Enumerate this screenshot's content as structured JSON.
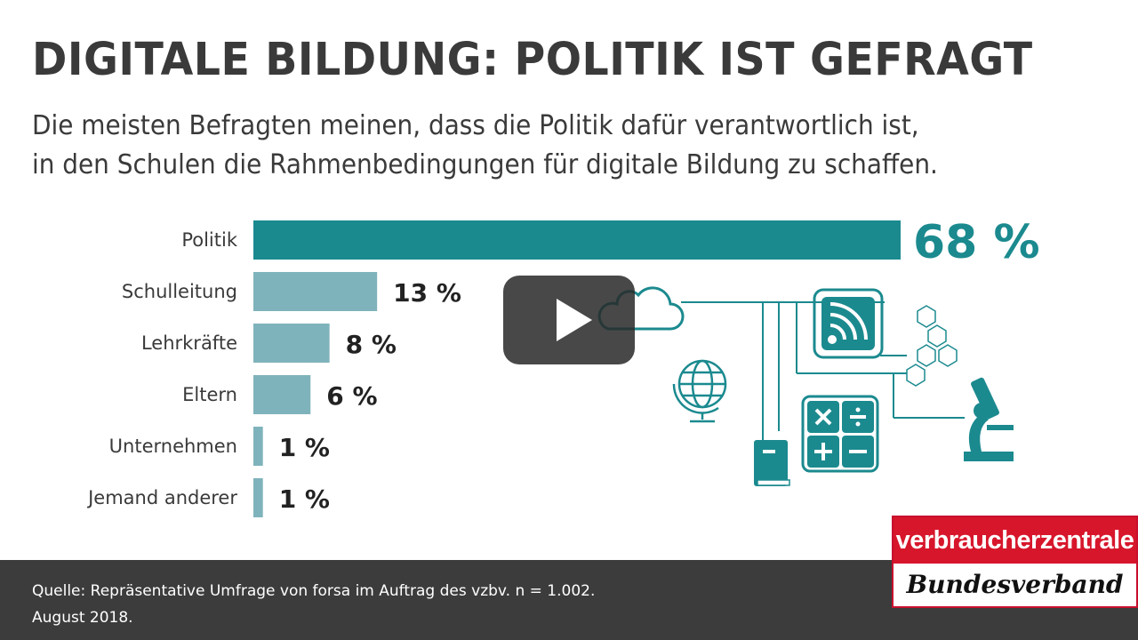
{
  "title": "DIGITALE BILDUNG: POLITIK IST GEFRAGT",
  "subtitle_line1": "Die meisten Befragten meinen, dass die Politik dafür verantwortlich ist,",
  "subtitle_line2": "in den Schulen die Rahmenbedingungen für digitale Bildung zu schaffen.",
  "colors": {
    "highlight": "#1b8a8f",
    "bar": "#7fb3bb",
    "text": "#3a3a3a",
    "footer": "#3c3c3c",
    "logo_red": "#d7162b"
  },
  "chart_data": {
    "type": "bar",
    "orientation": "horizontal",
    "categories": [
      "Politik",
      "Schulleitung",
      "Lehrkräfte",
      "Eltern",
      "Unternehmen",
      "Jemand anderer"
    ],
    "values": [
      68,
      13,
      8,
      6,
      1,
      1
    ],
    "value_labels": [
      "68 %",
      "13 %",
      "8 %",
      "6 %",
      "1 %",
      "1 %"
    ],
    "unit": "%",
    "highlight_index": 0,
    "grid": false
  },
  "player": {
    "play_icon": "play-icon"
  },
  "footer": {
    "source_line1": "Quelle: Repräsentative Umfrage von forsa im Auftrag des vzbv. n = 1.002.",
    "source_line2": "August 2018."
  },
  "logo": {
    "top": "verbraucherzentrale",
    "bottom": "Bundesverband"
  }
}
